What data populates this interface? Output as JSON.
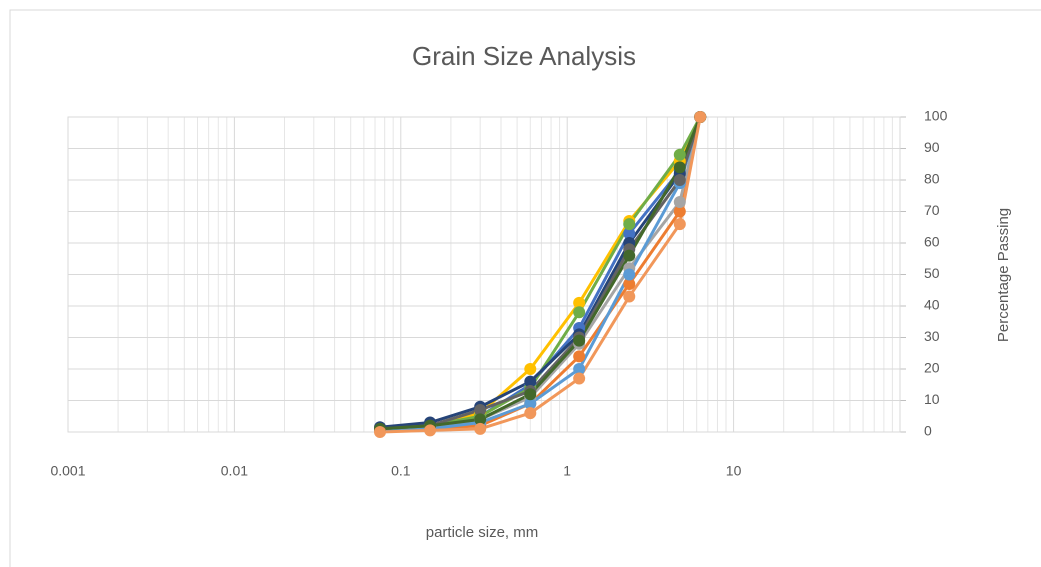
{
  "chart_data": {
    "type": "line",
    "title": "Grain Size Analysis",
    "x_label": "particle size, mm",
    "y_label": "Percentage Passing",
    "x_scale": "log",
    "y_axis_side": "right",
    "grid": true,
    "marker": "circle",
    "x": [
      0.075,
      0.15,
      0.3,
      0.6,
      1.18,
      2.36,
      4.75,
      6.3
    ],
    "series": [
      {
        "color": "#4472c4",
        "values": [
          1,
          2,
          5,
          15,
          33,
          63,
          83,
          100
        ]
      },
      {
        "color": "#ed7d31",
        "values": [
          0.5,
          1,
          2,
          9,
          24,
          47,
          70,
          100
        ]
      },
      {
        "color": "#a5a5a5",
        "values": [
          0.5,
          1.5,
          4,
          11,
          28,
          52,
          73,
          100
        ]
      },
      {
        "color": "#ffc000",
        "values": [
          1,
          2,
          6,
          20,
          41,
          67,
          86,
          100
        ]
      },
      {
        "color": "#5b9bd5",
        "values": [
          0.5,
          1,
          3,
          9,
          20,
          50,
          79,
          100
        ]
      },
      {
        "color": "#70ad47",
        "values": [
          1,
          2,
          5,
          14,
          38,
          66,
          88,
          100
        ]
      },
      {
        "color": "#264478",
        "values": [
          1.5,
          3,
          8,
          16,
          31,
          60,
          82,
          100
        ]
      },
      {
        "color": "#636363",
        "values": [
          1,
          2,
          7,
          13,
          30,
          58,
          80,
          100
        ]
      },
      {
        "color": "#43682b",
        "values": [
          1,
          2,
          4,
          12,
          29,
          56,
          84,
          100
        ]
      },
      {
        "color": "#f1975a",
        "values": [
          0,
          0.5,
          1,
          6,
          17,
          43,
          66,
          100
        ]
      }
    ],
    "xlim": [
      0.001,
      100
    ],
    "xticks": [
      0.001,
      0.01,
      0.1,
      1,
      10
    ],
    "ylim": [
      0,
      100
    ],
    "yticks": [
      0,
      10,
      20,
      30,
      40,
      50,
      60,
      70,
      80,
      90,
      100
    ]
  }
}
